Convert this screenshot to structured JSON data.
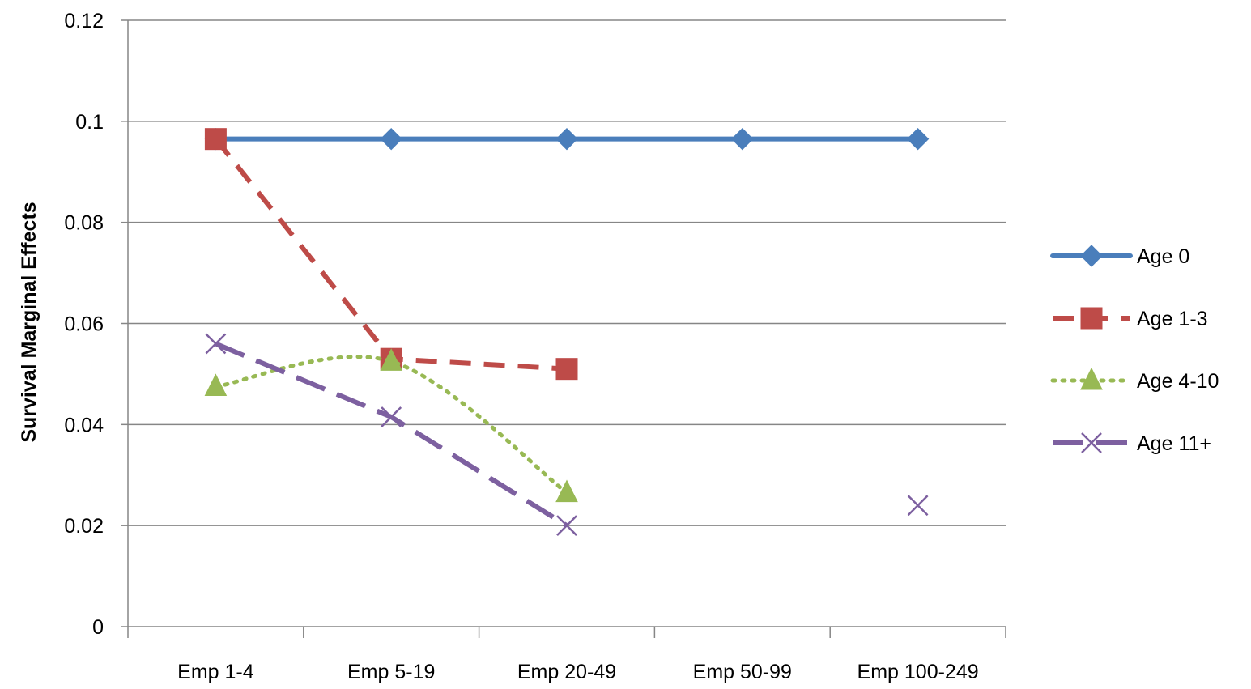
{
  "chart_data": {
    "type": "line",
    "title": "",
    "xlabel": "",
    "ylabel": "Survival Marginal Effects",
    "ylim": [
      0,
      0.12
    ],
    "yticks": [
      "0",
      "0.02",
      "0.04",
      "0.06",
      "0.08",
      "0.1",
      "0.12"
    ],
    "grid": "horizontal",
    "legend_position": "right",
    "categories": [
      "Emp 1-4",
      "Emp 5-19",
      "Emp 20-49",
      "Emp 50-99",
      "Emp 100-249"
    ],
    "series": [
      {
        "name": "Age 0",
        "values": [
          0.0965,
          0.0965,
          0.0965,
          0.0965,
          0.0965
        ],
        "color": "#4a7ebb",
        "line_style": "solid",
        "marker": "diamond"
      },
      {
        "name": "Age 1-3",
        "values": [
          0.0965,
          0.053,
          0.051,
          null,
          null
        ],
        "color": "#be4b48",
        "line_style": "dashed",
        "marker": "square"
      },
      {
        "name": "Age 4-10",
        "values": [
          0.0475,
          0.0525,
          0.0265,
          null,
          null
        ],
        "color": "#98b954",
        "line_style": "dotted",
        "marker": "triangle"
      },
      {
        "name": "Age 11+",
        "values": [
          0.056,
          0.0415,
          0.02,
          null,
          0.024
        ],
        "color": "#7d60a0",
        "line_style": "long-dash",
        "marker": "x"
      }
    ]
  }
}
